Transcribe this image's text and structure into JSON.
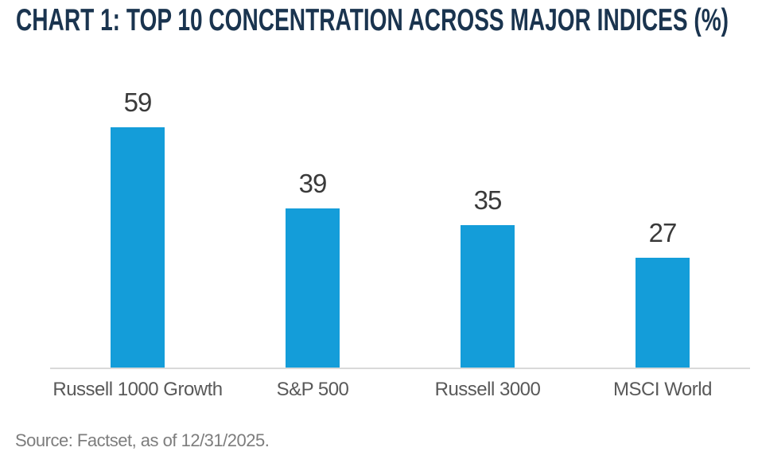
{
  "title": "CHART 1: TOP 10 CONCENTRATION ACROSS MAJOR INDICES (%)",
  "source": "Source: Factset, as of 12/31/2025.",
  "chart_data": {
    "type": "bar",
    "title": "CHART 1: TOP 10 CONCENTRATION ACROSS MAJOR INDICES (%)",
    "categories": [
      "Russell 1000 Growth",
      "S&P 500",
      "Russell 3000",
      "MSCI World"
    ],
    "values": [
      59,
      39,
      35,
      27
    ],
    "xlabel": "",
    "ylabel": "",
    "ylim": [
      0,
      62
    ],
    "grid": false,
    "legend": false,
    "value_labels_shown": true,
    "annotations": [
      "Source: Factset, as of 12/31/2025."
    ]
  },
  "colors": {
    "bar": "#149DD9",
    "title": "#1A344F",
    "axis_line": "#D9D9D9",
    "value_label": "#3A3A3A",
    "category_label": "#595959",
    "source_text": "#7D7D7D",
    "background": "#FFFFFF"
  }
}
